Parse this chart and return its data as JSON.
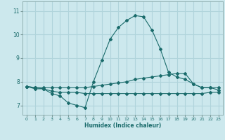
{
  "title": "",
  "xlabel": "Humidex (Indice chaleur)",
  "ylabel": "",
  "background_color": "#cce8ed",
  "grid_color": "#b0d4db",
  "line_color": "#1a6b6b",
  "xlim": [
    -0.5,
    23.5
  ],
  "ylim": [
    6.6,
    11.4
  ],
  "xticks": [
    0,
    1,
    2,
    3,
    4,
    5,
    6,
    7,
    8,
    9,
    10,
    11,
    12,
    13,
    14,
    15,
    16,
    17,
    18,
    19,
    20,
    21,
    22,
    23
  ],
  "yticks": [
    7,
    8,
    9,
    10,
    11
  ],
  "series": [
    {
      "x": [
        0,
        1,
        2,
        3,
        4,
        5,
        6,
        7,
        8,
        9,
        10,
        11,
        12,
        13,
        14,
        15,
        16,
        17,
        18,
        19,
        20,
        21,
        22,
        23
      ],
      "y": [
        7.8,
        7.7,
        7.7,
        7.5,
        7.4,
        7.1,
        7.0,
        6.9,
        8.0,
        8.9,
        9.8,
        10.3,
        10.6,
        10.8,
        10.75,
        10.2,
        9.4,
        8.4,
        8.2,
        8.1,
        7.9,
        7.75,
        7.75,
        7.65
      ]
    },
    {
      "x": [
        0,
        1,
        2,
        3,
        4,
        5,
        6,
        7,
        8,
        9,
        10,
        11,
        12,
        13,
        14,
        15,
        16,
        17,
        18,
        19,
        20,
        21,
        22,
        23
      ],
      "y": [
        7.8,
        7.75,
        7.75,
        7.75,
        7.75,
        7.75,
        7.75,
        7.75,
        7.8,
        7.85,
        7.9,
        7.95,
        8.0,
        8.1,
        8.15,
        8.2,
        8.25,
        8.3,
        8.35,
        8.35,
        7.9,
        7.75,
        7.75,
        7.75
      ]
    },
    {
      "x": [
        0,
        1,
        2,
        3,
        4,
        5,
        6,
        7,
        8,
        9,
        10,
        11,
        12,
        13,
        14,
        15,
        16,
        17,
        18,
        19,
        20,
        21,
        22,
        23
      ],
      "y": [
        7.8,
        7.75,
        7.7,
        7.6,
        7.55,
        7.55,
        7.55,
        7.5,
        7.5,
        7.5,
        7.5,
        7.5,
        7.5,
        7.5,
        7.5,
        7.5,
        7.5,
        7.5,
        7.5,
        7.5,
        7.5,
        7.5,
        7.55,
        7.55
      ]
    }
  ]
}
